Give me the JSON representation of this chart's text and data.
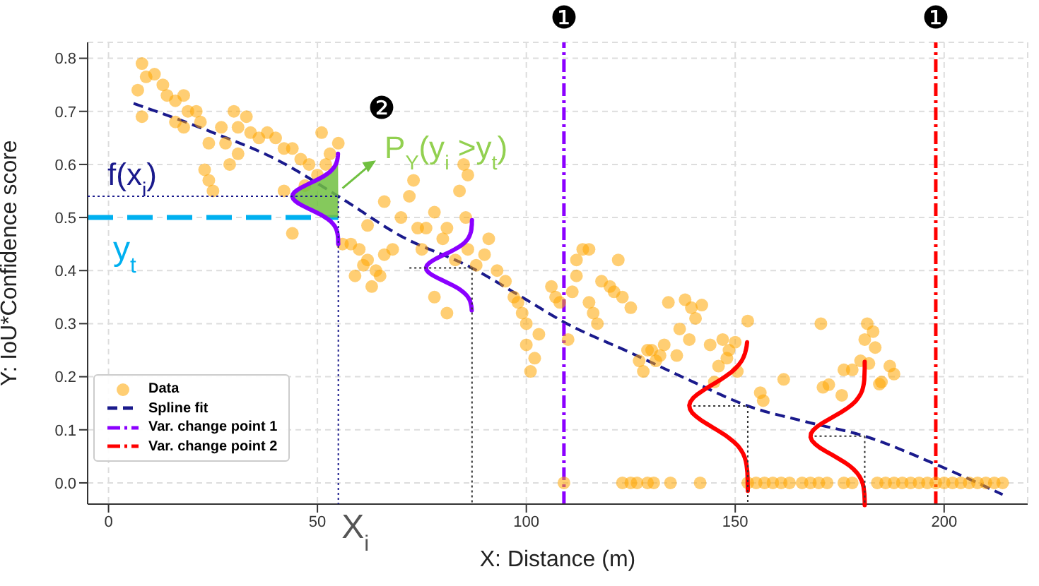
{
  "chart_data": {
    "type": "scatter",
    "xlabel": "X: Distance (m)",
    "ylabel": "Y: IoU*Confidence score",
    "xlim": [
      -5,
      220
    ],
    "ylim": [
      -0.04,
      0.83
    ],
    "xticks": [
      0,
      50,
      100,
      150,
      200
    ],
    "yticks": [
      {
        "value": 0,
        "label": "0.0"
      },
      {
        "value": 0.1,
        "label": "0.1"
      },
      {
        "value": 0.2,
        "label": "0.2"
      },
      {
        "value": 0.3,
        "label": "0.3"
      },
      {
        "value": 0.4,
        "label": "0.4"
      },
      {
        "value": 0.5,
        "label": "0.5"
      },
      {
        "value": 0.6,
        "label": "0.6"
      },
      {
        "value": 0.7,
        "label": "0.7"
      },
      {
        "value": 0.8,
        "label": "0.8"
      }
    ],
    "grid": true,
    "legend": "bottom left",
    "series": [
      {
        "name": "Data",
        "color": "#ffa500",
        "marker": "circle",
        "x": [
          8,
          9,
          11,
          7,
          8,
          13,
          14,
          16,
          18,
          19,
          21,
          16,
          18,
          22,
          24,
          27,
          28,
          30,
          31,
          33,
          34,
          36,
          38,
          40,
          42,
          44,
          31,
          29,
          23,
          24,
          25,
          46,
          48,
          50,
          52,
          53,
          55,
          51,
          47,
          44,
          42,
          56,
          58,
          60,
          62,
          64,
          66,
          68,
          59,
          61,
          63,
          65,
          62,
          66,
          70,
          72,
          73,
          74,
          76,
          78,
          80,
          81,
          83,
          84,
          85,
          86,
          85.5,
          75,
          81,
          78,
          86,
          88,
          90,
          91,
          93,
          95,
          97,
          98,
          99,
          100,
          101,
          102,
          103,
          100,
          106,
          107,
          108,
          110,
          111,
          112,
          113.5,
          115,
          112,
          115,
          116,
          117,
          118,
          120,
          122,
          121,
          123,
          125,
          128,
          127,
          130,
          132,
          131,
          133,
          129,
          134,
          138,
          139.5,
          142,
          140.5,
          136.7,
          139,
          136,
          144,
          147,
          148.5,
          150,
          148,
          146,
          150.5,
          153,
          145,
          156,
          156.7,
          161.6,
          170.5,
          181.6,
          183,
          181,
          183.5,
          180,
          182,
          176,
          178,
          172.4,
          171,
          184.5,
          187,
          185,
          175.5,
          188,
          109,
          123,
          125,
          126.5,
          129,
          130.5,
          134.5,
          141.6,
          153,
          155,
          157,
          159,
          161,
          163,
          166,
          168,
          170,
          172,
          176,
          178,
          184,
          186,
          188,
          190,
          192,
          194,
          196,
          198,
          200,
          202,
          204,
          206,
          208,
          210,
          212,
          214
        ],
        "values": [
          0.79,
          0.765,
          0.77,
          0.74,
          0.69,
          0.75,
          0.73,
          0.72,
          0.73,
          0.7,
          0.7,
          0.68,
          0.67,
          0.68,
          0.64,
          0.67,
          0.64,
          0.7,
          0.67,
          0.69,
          0.66,
          0.65,
          0.66,
          0.65,
          0.63,
          0.63,
          0.62,
          0.6,
          0.59,
          0.57,
          0.55,
          0.61,
          0.6,
          0.58,
          0.6,
          0.62,
          0.64,
          0.66,
          0.56,
          0.47,
          0.55,
          0.45,
          0.45,
          0.44,
          0.42,
          0.4,
          0.43,
          0.44,
          0.39,
          0.41,
          0.37,
          0.39,
          0.485,
          0.53,
          0.5,
          0.54,
          0.57,
          0.48,
          0.48,
          0.51,
          0.46,
          0.48,
          0.42,
          0.55,
          0.6,
          0.58,
          0.5,
          0.44,
          0.32,
          0.35,
          0.44,
          0.41,
          0.43,
          0.46,
          0.4,
          0.38,
          0.35,
          0.34,
          0.32,
          0.3,
          0.21,
          0.235,
          0.28,
          0.26,
          0.37,
          0.35,
          0.34,
          0.27,
          0.36,
          0.39,
          0.44,
          0.44,
          0.42,
          0.34,
          0.32,
          0.3,
          0.38,
          0.37,
          0.42,
          0.36,
          0.35,
          0.33,
          0.21,
          0.23,
          0.25,
          0.24,
          0.23,
          0.26,
          0.25,
          0.34,
          0.345,
          0.33,
          0.335,
          0.31,
          0.29,
          0.27,
          0.24,
          0.26,
          0.27,
          0.25,
          0.265,
          0.235,
          0.22,
          0.21,
          0.305,
          0.19,
          0.17,
          0.155,
          0.195,
          0.3,
          0.3,
          0.285,
          0.27,
          0.255,
          0.23,
          0.225,
          0.213,
          0.213,
          0.185,
          0.18,
          0.186,
          0.22,
          0.19,
          0.165,
          0.205,
          0,
          0,
          0,
          0,
          0,
          0,
          0,
          0,
          0,
          0,
          0,
          0,
          0,
          0,
          0,
          0,
          0,
          0,
          0,
          0,
          0,
          0,
          0,
          0,
          0,
          0,
          0,
          0,
          0,
          0,
          0,
          0,
          0,
          0,
          0,
          0
        ]
      },
      {
        "type": "line",
        "name": "Spline fit",
        "color": "#1a1a8c",
        "marker": "none",
        "line_style": "dashed",
        "x": [
          6,
          25,
          40,
          55,
          70,
          87,
          100,
          109,
          125,
          140,
          153,
          167,
          181,
          198,
          214
        ],
        "values": [
          0.715,
          0.66,
          0.61,
          0.54,
          0.465,
          0.405,
          0.345,
          0.303,
          0.245,
          0.19,
          0.145,
          0.115,
          0.088,
          0.035,
          -0.022
        ]
      },
      {
        "type": "line",
        "name": "Var. change point 1",
        "color": "#8b00ff",
        "marker": "none",
        "line_style": "dashdot",
        "x": [
          109,
          109
        ],
        "values": [
          -0.04,
          0.83
        ]
      },
      {
        "type": "line",
        "name": "Var. change point 2",
        "color": "#ff0000",
        "marker": "none",
        "line_style": "dashdot",
        "x": [
          198,
          198
        ],
        "values": [
          -0.04,
          0.83
        ]
      }
    ],
    "ref_lines": [
      {
        "axis": "y",
        "value": 0.5,
        "label": "y$_{t}$",
        "color": "#00b0f0",
        "line_style": "dashed"
      }
    ],
    "annotations": [
      "❶",
      "❶",
      "❷",
      {
        "text": "f(x$_{i}$)",
        "x": 55,
        "y": 0.54
      },
      "P$_{Y}$(y$_{i}$ >y$_{t}$)",
      "X$_{i}$"
    ]
  }
}
